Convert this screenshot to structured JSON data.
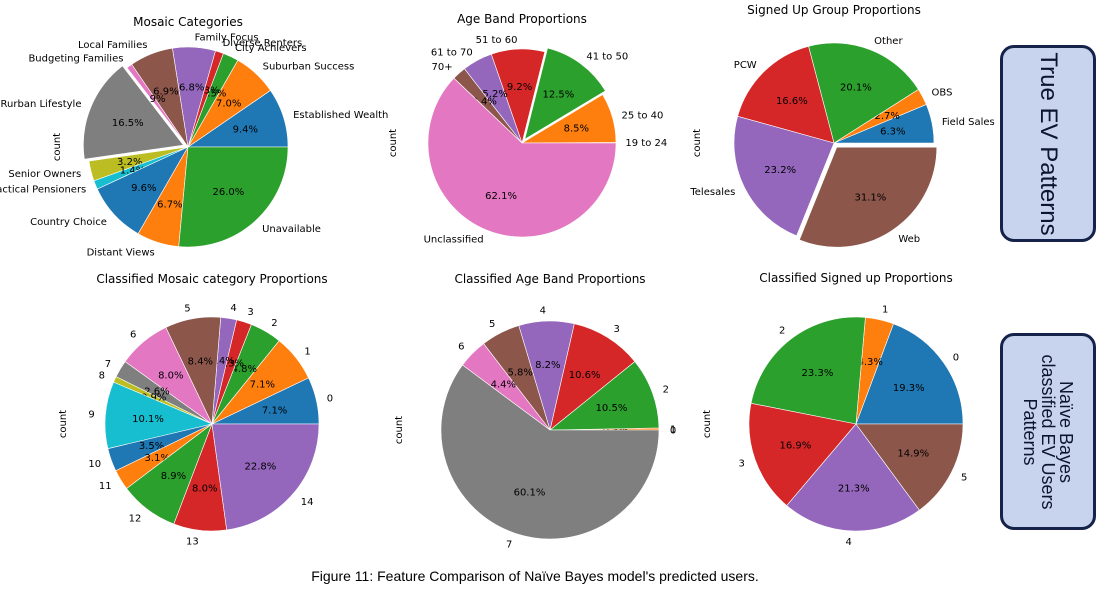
{
  "figure_caption": "Figure 11: Feature Comparison of Naïve Bayes model's predicted users.",
  "side_labels": {
    "top": "True EV Patterns",
    "bottom": [
      "Naïve Bayes",
      "classified EV Users",
      "Patterns"
    ]
  },
  "colors": {
    "palette": [
      "#1f77b4",
      "#ff7f0e",
      "#2ca02c",
      "#d62728",
      "#9467bd",
      "#8c564b",
      "#e377c2",
      "#7f7f7f",
      "#bcbd22",
      "#17becf"
    ],
    "side_box_fill": "#c8d3ee",
    "side_box_border": "#15224a"
  },
  "chart_data": [
    {
      "type": "pie",
      "title": "Mosaic Categories",
      "ylabel": "count",
      "labels": [
        "Established Wealth",
        "Suburban Success",
        "City Achievers",
        "Diverse Renters",
        "Family Focus",
        "Local Families",
        "Budgeting Families",
        "Rurban Lifestyle",
        "Senior Owners",
        "Practical Pensioners",
        "Country Choice",
        "Distant Views",
        "Unavailable"
      ],
      "values": [
        9.4,
        7.0,
        2.5,
        1.3,
        6.8,
        6.9,
        0.9,
        16.5,
        3.2,
        1.4,
        9.6,
        6.7,
        26.0
      ],
      "pct_labels": [
        "9.4%",
        "7.0%",
        "2.5%",
        "1.3%",
        "6.8%",
        "6.9%",
        "0.9%",
        "16.5%",
        "3.2%",
        "1.4%",
        "9.6%",
        "6.7%",
        "26.0%"
      ],
      "colors": [
        "#1f77b4",
        "#ff7f0e",
        "#2ca02c",
        "#d62728",
        "#9467bd",
        "#8c564b",
        "#e377c2",
        "#7f7f7f",
        "#bcbd22",
        "#17becf",
        "#1f77b4",
        "#ff7f0e",
        "#2ca02c"
      ],
      "explode_index": 7
    },
    {
      "type": "pie",
      "title": "Age Band Proportions",
      "ylabel": "count",
      "labels": [
        "19 to 24",
        "25 to 40",
        "41 to 50",
        "51 to 60",
        "61 to 70",
        "70+",
        "Unclassified"
      ],
      "values": [
        0.1,
        8.5,
        12.5,
        9.2,
        5.2,
        2.4,
        62.1
      ],
      "pct_labels": [
        "0.1%",
        "8.5%",
        "12.5%",
        "9.2%",
        "5.2%",
        "2.4%",
        "62.1%"
      ],
      "colors": [
        "#1f77b4",
        "#ff7f0e",
        "#2ca02c",
        "#d62728",
        "#9467bd",
        "#8c564b",
        "#e377c2"
      ],
      "explode_index": 2
    },
    {
      "type": "pie",
      "title": "Signed Up Group Proportions",
      "ylabel": "count",
      "labels": [
        "Field Sales",
        "OBS",
        "Other",
        "PCW",
        "Telesales",
        "Web"
      ],
      "values": [
        6.3,
        2.7,
        20.1,
        16.6,
        23.2,
        31.1
      ],
      "pct_labels": [
        "6.3%",
        "2.7%",
        "20.1%",
        "16.6%",
        "23.2%",
        "31.1%"
      ],
      "colors": [
        "#1f77b4",
        "#ff7f0e",
        "#2ca02c",
        "#d62728",
        "#9467bd",
        "#8c564b"
      ],
      "explode_index": 5
    },
    {
      "type": "pie",
      "title": "Classified Mosaic category Proportions",
      "ylabel": "count",
      "labels": [
        "0",
        "1",
        "2",
        "3",
        "4",
        "5",
        "6",
        "7",
        "8",
        "9",
        "10",
        "11",
        "12",
        "13",
        "14"
      ],
      "values": [
        7.1,
        7.1,
        4.8,
        2.3,
        2.4,
        8.4,
        8.0,
        2.6,
        0.9,
        10.1,
        3.5,
        3.1,
        8.9,
        8.0,
        22.8
      ],
      "pct_labels": [
        "7.1%",
        "7.1%",
        "4.8%",
        "2.3%",
        "2.4%",
        "8.4%",
        "8.0%",
        "2.6%",
        "0.9%",
        "10.1%",
        "3.5%",
        "3.1%",
        "8.9%",
        "8.0%",
        "22.8%"
      ],
      "colors": [
        "#1f77b4",
        "#ff7f0e",
        "#2ca02c",
        "#d62728",
        "#9467bd",
        "#8c564b",
        "#e377c2",
        "#7f7f7f",
        "#bcbd22",
        "#17becf",
        "#1f77b4",
        "#ff7f0e",
        "#2ca02c",
        "#d62728",
        "#9467bd"
      ],
      "explode_index": -1
    },
    {
      "type": "pie",
      "title": "Classified Age Band Proportions",
      "ylabel": "count",
      "labels": [
        "0",
        "1",
        "2",
        "3",
        "4",
        "5",
        "6",
        "7"
      ],
      "values": [
        0.0,
        0.3,
        10.5,
        10.6,
        8.2,
        5.8,
        4.4,
        60.1
      ],
      "pct_labels": [
        "0.0%",
        "0.3%",
        "10.5%",
        "10.6%",
        "8.2%",
        "5.8%",
        "4.4%",
        "60.1%"
      ],
      "colors": [
        "#1f77b4",
        "#ff7f0e",
        "#2ca02c",
        "#d62728",
        "#9467bd",
        "#8c564b",
        "#e377c2",
        "#7f7f7f"
      ],
      "explode_index": -1
    },
    {
      "type": "pie",
      "title": "Classified Signed up Proportions",
      "ylabel": "count",
      "labels": [
        "0",
        "1",
        "2",
        "3",
        "4",
        "5"
      ],
      "values": [
        19.3,
        4.3,
        23.3,
        16.9,
        21.3,
        14.9
      ],
      "pct_labels": [
        "19.3%",
        "4.3%",
        "23.3%",
        "16.9%",
        "21.3%",
        "14.9%"
      ],
      "colors": [
        "#1f77b4",
        "#ff7f0e",
        "#2ca02c",
        "#d62728",
        "#9467bd",
        "#8c564b"
      ],
      "explode_index": -1
    }
  ]
}
